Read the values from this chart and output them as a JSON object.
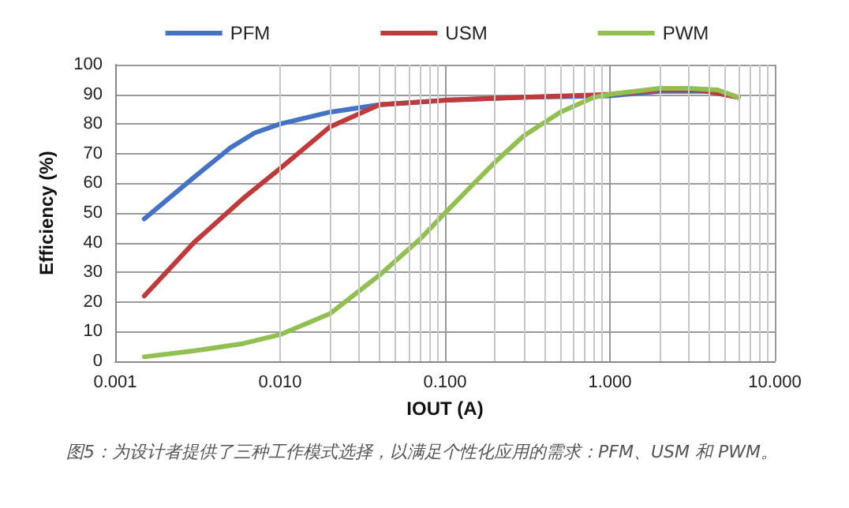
{
  "chart_data": {
    "type": "line",
    "xlabel": "IOUT (A)",
    "ylabel": "Efficiency (%)",
    "log": "x",
    "xlim": [
      0.001,
      10
    ],
    "xticks": [
      {
        "value": 0.001,
        "label": "0.001"
      },
      {
        "value": 0.01,
        "label": "0.010"
      },
      {
        "value": 0.1,
        "label": "0.100"
      },
      {
        "value": 1,
        "label": "1.000"
      },
      {
        "value": 10,
        "label": "10.000"
      }
    ],
    "ylim": [
      0,
      100
    ],
    "yticks": [
      0,
      10,
      20,
      30,
      40,
      50,
      60,
      70,
      80,
      90,
      100
    ],
    "grid": true,
    "legend": "top",
    "marker": "none",
    "line_style": "solid",
    "annotations": [
      "图5：为设计者提供了三种工作模式选择，以满足个性化应用的需求：PFM、USM 和 PWM。"
    ],
    "series": [
      {
        "name": "PFM",
        "color": "#4472c4",
        "x": [
          0.0015,
          0.003,
          0.005,
          0.007,
          0.01,
          0.02,
          0.04,
          0.1,
          0.3,
          1,
          2,
          4,
          6
        ],
        "values": [
          48,
          62,
          72,
          77,
          80,
          84,
          86.5,
          88,
          89,
          89.5,
          91,
          91,
          89
        ]
      },
      {
        "name": "USM",
        "color": "#c0393b",
        "x": [
          0.0015,
          0.003,
          0.006,
          0.01,
          0.02,
          0.04,
          0.1,
          0.3,
          1,
          2,
          3.5,
          6
        ],
        "values": [
          22,
          40,
          55,
          65,
          79,
          86.5,
          88,
          89,
          90,
          91.5,
          91.5,
          89
        ]
      },
      {
        "name": "PWM",
        "color": "#92c050",
        "x": [
          0.0015,
          0.003,
          0.006,
          0.01,
          0.02,
          0.04,
          0.07,
          0.1,
          0.15,
          0.2,
          0.3,
          0.5,
          0.8,
          1,
          2,
          3,
          4.5,
          6
        ],
        "values": [
          1.5,
          3.5,
          6,
          9,
          16,
          29,
          41,
          50,
          60,
          67,
          76,
          84,
          89,
          90,
          92,
          92,
          91.5,
          89
        ]
      }
    ]
  }
}
